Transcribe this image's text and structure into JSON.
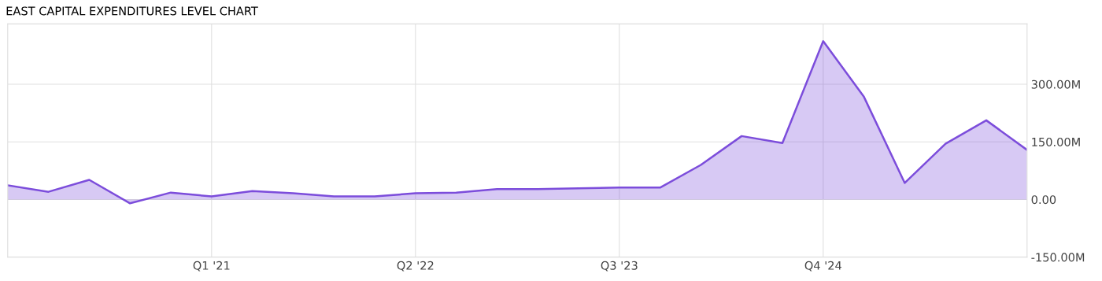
{
  "chart_data": {
    "type": "area",
    "title": "EAST CAPITAL EXPENDITURES LEVEL CHART",
    "categories": [
      null,
      null,
      null,
      null,
      null,
      "Q1 '21",
      null,
      null,
      null,
      null,
      "Q2 '22",
      null,
      null,
      null,
      null,
      "Q3 '23",
      null,
      null,
      null,
      null,
      "Q4 '24",
      null,
      null,
      null,
      null,
      null
    ],
    "series": [
      {
        "color": "#7c4ddb",
        "values": [
          37,
          20,
          51,
          -10,
          18,
          8,
          22,
          16,
          8,
          8,
          16,
          18,
          27,
          27,
          29,
          31,
          31,
          90,
          165,
          147,
          412,
          267,
          43,
          145,
          206,
          129
        ]
      }
    ],
    "ylim": [
      -150,
      457
    ],
    "yticks": [
      {
        "value": -150,
        "label": "-150.00M"
      },
      {
        "value": 0,
        "label": "0.00"
      },
      {
        "value": 150,
        "label": "150.00M"
      },
      {
        "value": 300,
        "label": "300.00M"
      }
    ],
    "grid": true,
    "marker": "none",
    "line_style": "solid"
  }
}
